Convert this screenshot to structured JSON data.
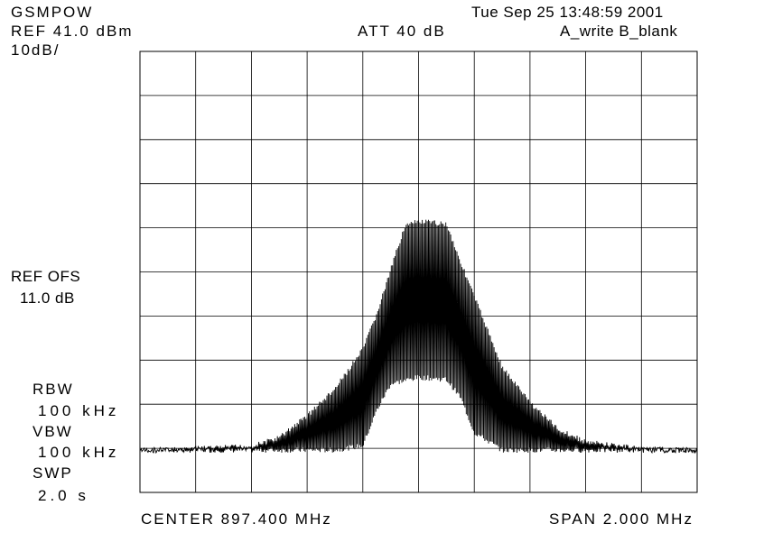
{
  "header": {
    "title": "GSMPOW",
    "timestamp": "Tue Sep 25 13:48:59 2001",
    "ref_level": "REF 41.0 dBm",
    "attenuation": "ATT 40 dB",
    "trace_modes": "A_write B_blank",
    "scale": "10dB/"
  },
  "side_panel": {
    "ref_ofs_label": "REF OFS",
    "ref_ofs_value": "11.0 dB",
    "rbw_label": "RBW",
    "rbw_value": "100 kHz",
    "vbw_label": "VBW",
    "vbw_value": "100 kHz",
    "swp_label": "SWP",
    "swp_value": "2.0 s"
  },
  "footer": {
    "center": "CENTER 897.400 MHz",
    "span": "SPAN 2.000 MHz"
  },
  "colors": {
    "trace": "#000000",
    "grid": "#000000",
    "background": "#ffffff"
  },
  "chart_data": {
    "type": "line",
    "title": "GSMPOW",
    "xlabel": "",
    "ylabel": "",
    "xunit": "MHz",
    "yunit": "dBm",
    "x_center": 897.4,
    "x_span": 2.0,
    "xlim": [
      896.4,
      898.4
    ],
    "ylim": [
      -59.0,
      41.0
    ],
    "grid": true,
    "x_divisions": 10,
    "y_divisions": 10,
    "ref_level": 41.0,
    "scale_per_div": 10,
    "series": [
      {
        "envelope_upper": {
          "x": [
            896.4,
            896.6,
            896.8,
            896.9,
            897.0,
            897.1,
            897.2,
            897.25,
            897.3,
            897.35,
            897.4,
            897.5,
            897.55,
            897.6,
            897.65,
            897.7,
            897.8,
            897.9,
            898.0,
            898.2,
            898.4
          ],
          "y": [
            -49.0,
            -48.5,
            -48.0,
            -46.0,
            -41.0,
            -35.0,
            -26.0,
            -18.0,
            -8.0,
            2.0,
            3.0,
            2.5,
            -6.0,
            -14.0,
            -22.0,
            -30.0,
            -38.0,
            -44.0,
            -47.0,
            -48.5,
            -49.0
          ]
        },
        "envelope_lower": {
          "x": [
            896.4,
            897.0,
            897.1,
            897.2,
            897.25,
            897.3,
            897.4,
            897.5,
            897.55,
            897.6,
            897.7,
            897.8,
            898.4
          ],
          "y": [
            -50.0,
            -50.0,
            -50.0,
            -49.0,
            -41.0,
            -35.0,
            -33.5,
            -34.0,
            -38.0,
            -46.0,
            -50.0,
            -50.0,
            -50.0
          ]
        }
      }
    ]
  }
}
